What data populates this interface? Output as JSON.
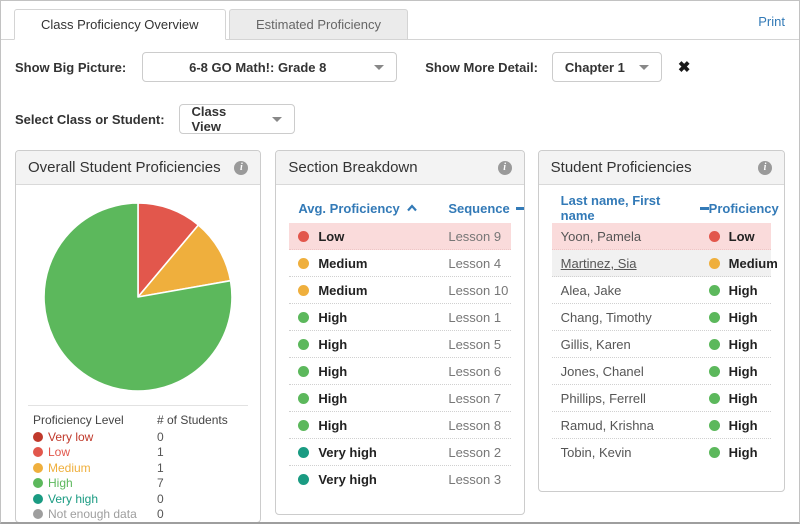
{
  "tabs": [
    {
      "label": "Class Proficiency Overview",
      "active": true
    },
    {
      "label": "Estimated Proficiency",
      "active": false
    }
  ],
  "print_label": "Print",
  "filters": {
    "big_picture_label": "Show Big Picture:",
    "big_picture_value": "6-8 GO Math!: Grade 8",
    "more_detail_label": "Show More Detail:",
    "more_detail_value": "Chapter 1",
    "class_student_label": "Select Class or Student:",
    "class_student_value": "Class View"
  },
  "colors": {
    "Very low": "#c0392b",
    "Low": "#e2574c",
    "Medium": "#efaf3d",
    "High": "#5cb85c",
    "Very high": "#1a9b82",
    "Not enough data": "#9e9e9e",
    "accent_blue": "#337ab7",
    "row_pink": "#fadbdb",
    "row_gray": "#f1f1f1"
  },
  "chart_data": {
    "type": "pie",
    "title": "Overall Student Proficiencies",
    "legend_columns": [
      "Proficiency Level",
      "# of Students"
    ],
    "categories": [
      "Very low",
      "Low",
      "Medium",
      "High",
      "Very high",
      "Not enough data"
    ],
    "values": [
      0,
      1,
      1,
      7,
      0,
      0
    ],
    "legend_position": "bottom",
    "start_angle_deg": -90,
    "direction": "clockwise"
  },
  "panels": {
    "overall": {
      "title": "Overall Student Proficiencies"
    },
    "section": {
      "title": "Section Breakdown",
      "columns": [
        {
          "label": "Avg. Proficiency",
          "sort": "asc"
        },
        {
          "label": "Sequence",
          "sort": "none"
        }
      ],
      "rows": [
        {
          "level": "Low",
          "sequence": "Lesson 9",
          "highlight": "pink"
        },
        {
          "level": "Medium",
          "sequence": "Lesson 4"
        },
        {
          "level": "Medium",
          "sequence": "Lesson 10"
        },
        {
          "level": "High",
          "sequence": "Lesson 1"
        },
        {
          "level": "High",
          "sequence": "Lesson 5"
        },
        {
          "level": "High",
          "sequence": "Lesson 6"
        },
        {
          "level": "High",
          "sequence": "Lesson 7"
        },
        {
          "level": "High",
          "sequence": "Lesson 8"
        },
        {
          "level": "Very high",
          "sequence": "Lesson 2"
        },
        {
          "level": "Very high",
          "sequence": "Lesson 3"
        }
      ]
    },
    "students": {
      "title": "Student Proficiencies",
      "columns": [
        {
          "label": "Last name, First name",
          "sort": "none"
        },
        {
          "label": "Proficiency",
          "sort": "asc"
        }
      ],
      "rows": [
        {
          "name": "Yoon, Pamela",
          "level": "Low",
          "highlight": "pink"
        },
        {
          "name": "Martinez, Sia",
          "level": "Medium",
          "highlight": "gray",
          "underline": true
        },
        {
          "name": "Alea, Jake",
          "level": "High"
        },
        {
          "name": "Chang, Timothy",
          "level": "High"
        },
        {
          "name": "Gillis, Karen",
          "level": "High"
        },
        {
          "name": "Jones, Chanel",
          "level": "High"
        },
        {
          "name": "Phillips, Ferrell",
          "level": "High"
        },
        {
          "name": "Ramud, Krishna",
          "level": "High"
        },
        {
          "name": "Tobin, Kevin",
          "level": "High"
        }
      ]
    }
  }
}
